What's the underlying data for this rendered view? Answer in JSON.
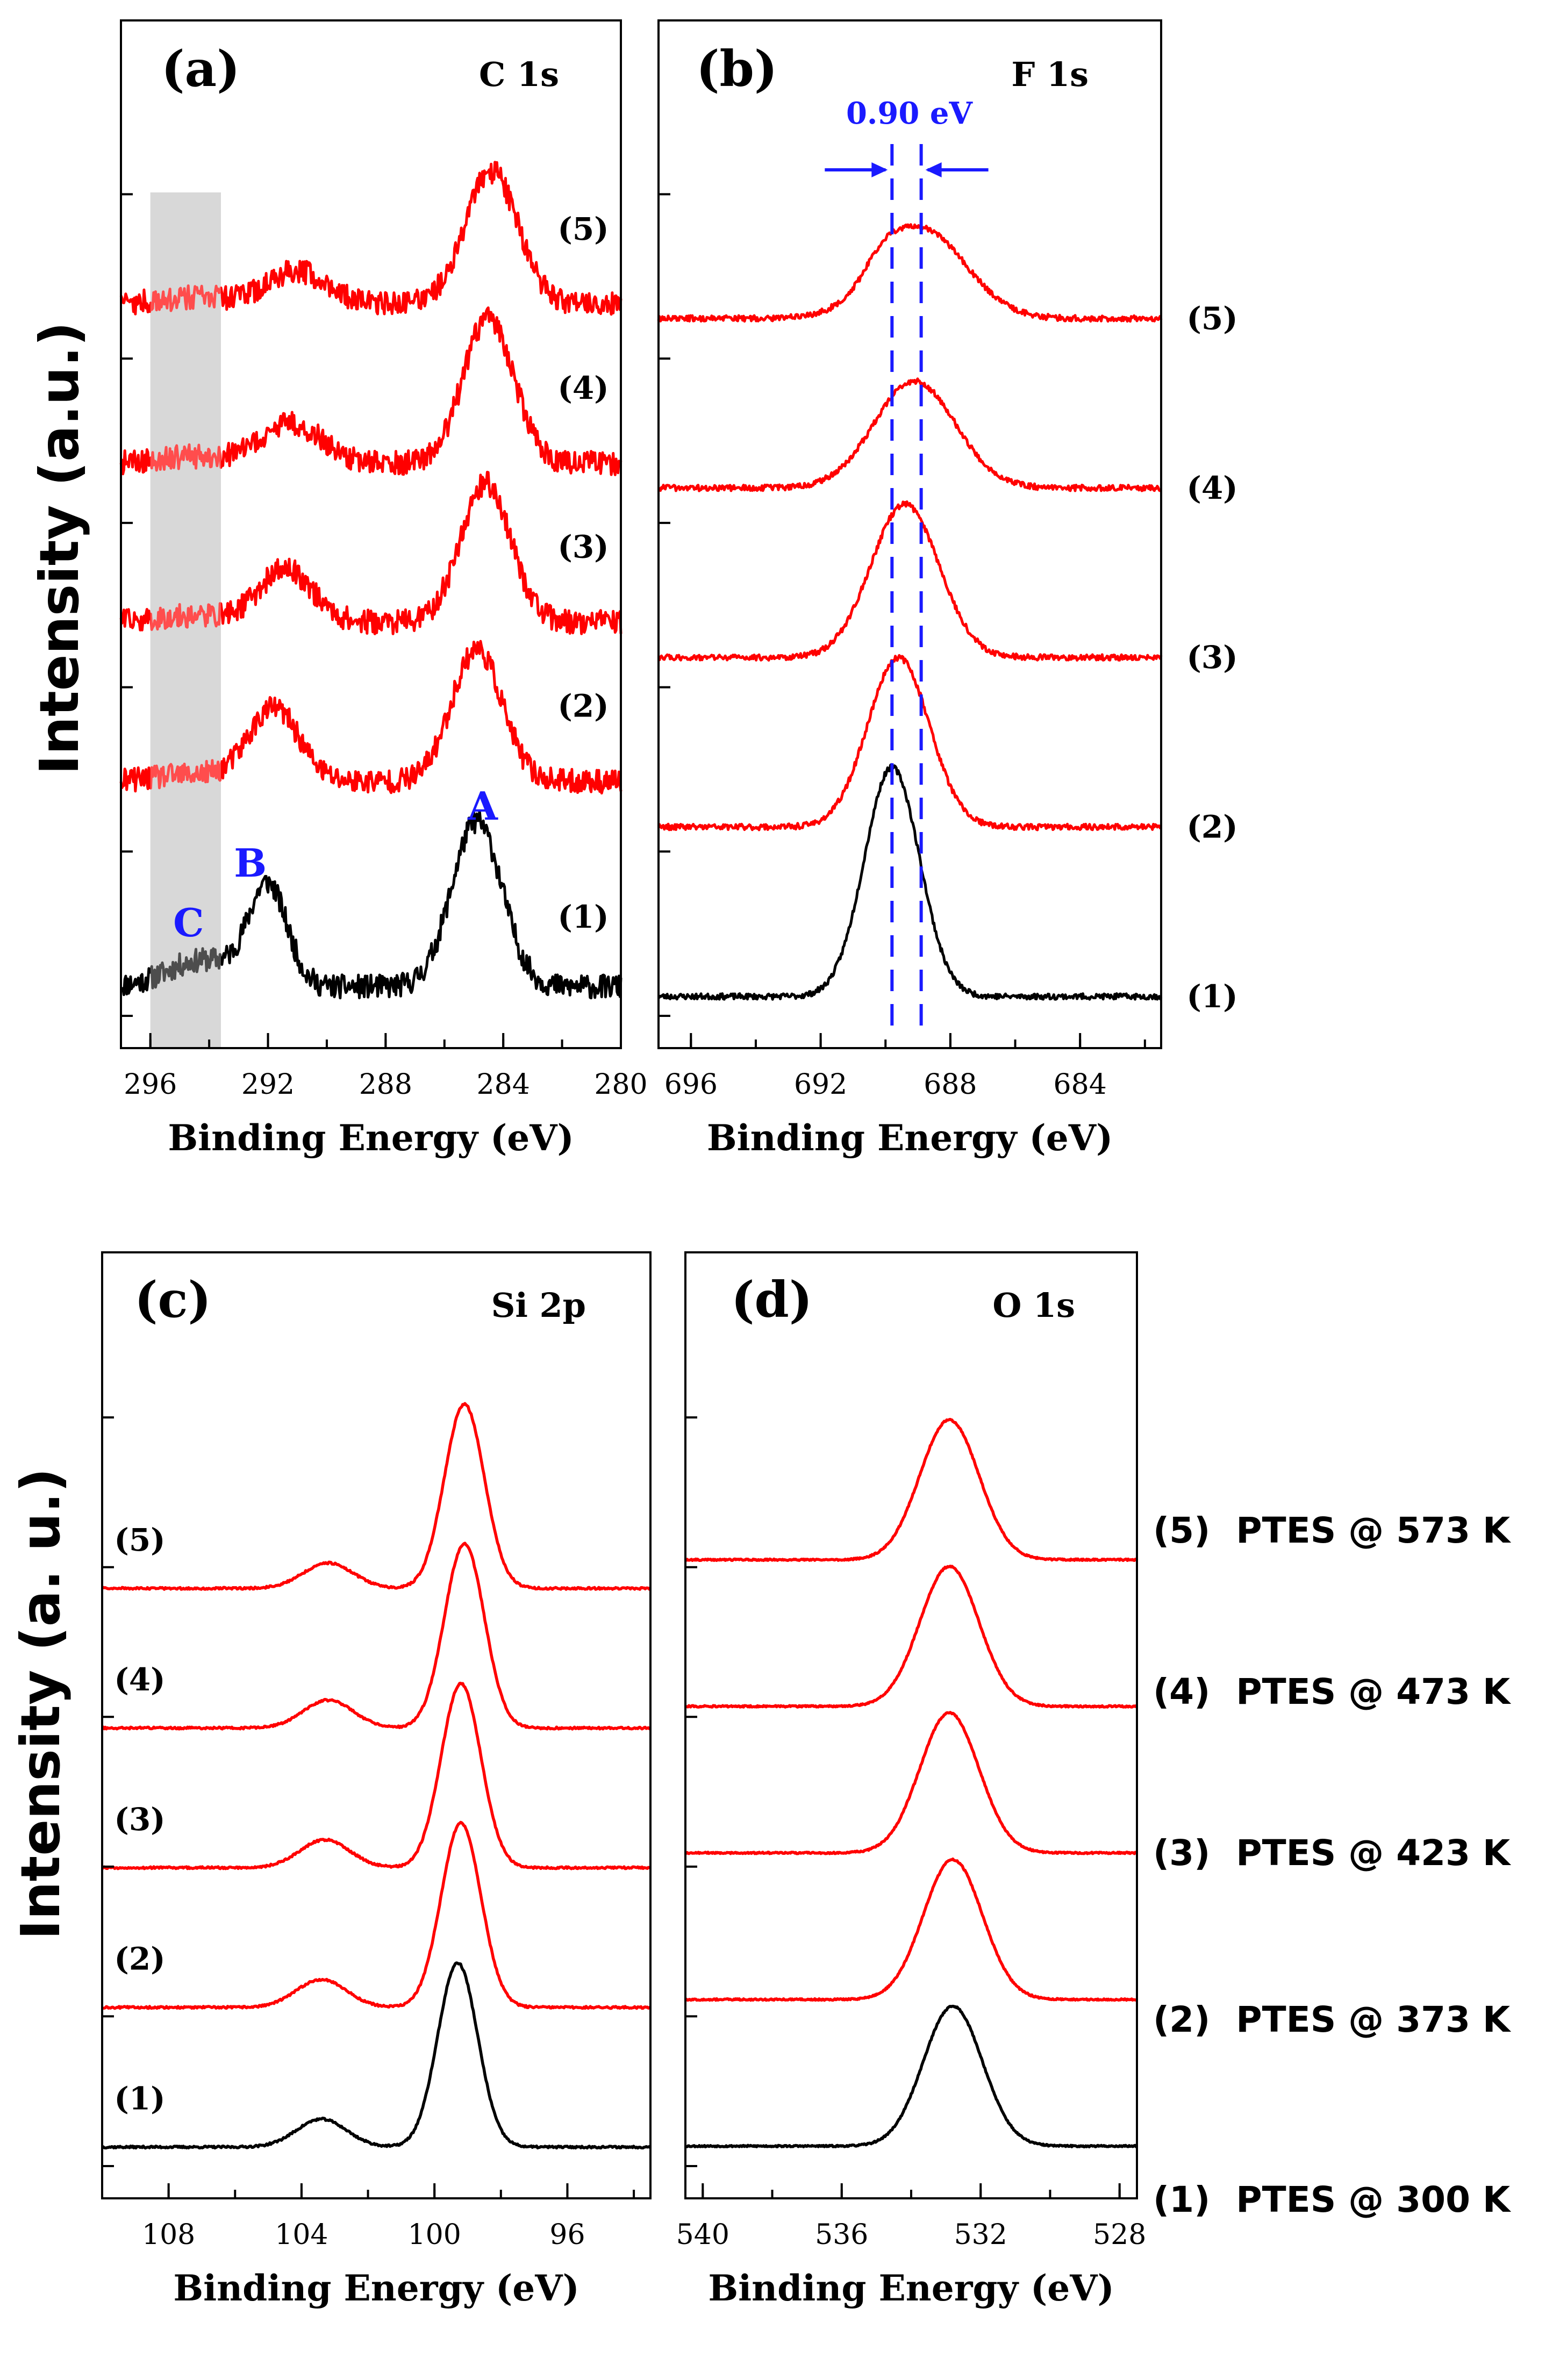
{
  "figure": {
    "colors": {
      "heated": "#ff0000",
      "pristine": "#000000",
      "annotation": "#1a1aff",
      "highlight": "#c8c8c8",
      "frame": "#000000"
    },
    "ylabel_top": "Intensity (a.u.)",
    "ylabel_bottom": "Intensity (a. u.)",
    "legend": [
      {
        "num": "(5)",
        "label": "PTES @ 573 K"
      },
      {
        "num": "(4)",
        "label": "PTES @ 473 K"
      },
      {
        "num": "(3)",
        "label": "PTES @ 423 K"
      },
      {
        "num": "(2)",
        "label": "PTES @ 373 K"
      },
      {
        "num": "(1)",
        "label": "PTES @ 300 K"
      }
    ]
  },
  "chart_data": [
    {
      "type": "line",
      "panel": "(a)",
      "title": "C 1s",
      "xlabel": "Binding Energy (eV)",
      "ylabel": "Intensity (a.u.)",
      "xlim": [
        297.0,
        280.0
      ],
      "xticks": [
        296,
        292,
        288,
        284,
        280
      ],
      "xtick_labels": [
        "296",
        "292",
        "288",
        "284",
        "280"
      ],
      "noise": 0.09,
      "spectrum_labels": [
        "(1)",
        "(2)",
        "(3)",
        "(4)",
        "(5)"
      ],
      "highlight_band": [
        296.0,
        293.6
      ],
      "peak_labels": [
        {
          "text": "A",
          "x": 284.7,
          "y": 1.38
        },
        {
          "text": "B",
          "x": 292.6,
          "y": 0.95
        },
        {
          "text": "C",
          "x": 294.7,
          "y": 0.5
        }
      ],
      "series": [
        {
          "name": "(1)",
          "color": "pristine",
          "offset": 0.0,
          "baseline": 0.12,
          "peaks": [
            {
              "center": 284.9,
              "height": 1.25,
              "width": 0.85
            },
            {
              "center": 292.0,
              "height": 0.75,
              "width": 0.65
            },
            {
              "center": 294.2,
              "height": 0.2,
              "width": 1.2
            }
          ]
        },
        {
          "name": "(2)",
          "color": "heated",
          "offset": 1.55,
          "baseline": 0.12,
          "peaks": [
            {
              "center": 284.9,
              "height": 1.0,
              "width": 0.85
            },
            {
              "center": 291.8,
              "height": 0.55,
              "width": 0.85
            },
            {
              "center": 294.5,
              "height": 0.05,
              "width": 1.2
            }
          ]
        },
        {
          "name": "(3)",
          "color": "heated",
          "offset": 2.75,
          "baseline": 0.12,
          "peaks": [
            {
              "center": 284.6,
              "height": 1.05,
              "width": 0.85
            },
            {
              "center": 291.4,
              "height": 0.4,
              "width": 0.9
            },
            {
              "center": 294.5,
              "height": 0.05,
              "width": 1.2
            }
          ]
        },
        {
          "name": "(4)",
          "color": "heated",
          "offset": 3.95,
          "baseline": 0.12,
          "peaks": [
            {
              "center": 284.5,
              "height": 1.1,
              "width": 0.85
            },
            {
              "center": 291.2,
              "height": 0.3,
              "width": 1.0
            },
            {
              "center": 294.5,
              "height": 0.05,
              "width": 1.2
            }
          ]
        },
        {
          "name": "(5)",
          "color": "heated",
          "offset": 5.15,
          "baseline": 0.12,
          "peaks": [
            {
              "center": 284.4,
              "height": 1.0,
              "width": 0.9
            },
            {
              "center": 291.0,
              "height": 0.25,
              "width": 1.0
            },
            {
              "center": 294.5,
              "height": 0.05,
              "width": 1.2
            }
          ]
        }
      ],
      "ylim": [
        -0.1,
        6.6
      ]
    },
    {
      "type": "line",
      "panel": "(b)",
      "title": "F 1s",
      "xlabel": "Binding Energy (eV)",
      "ylabel": "Intensity (a.u.)",
      "xlim": [
        697.0,
        681.5
      ],
      "xticks": [
        696,
        692,
        688,
        684
      ],
      "xtick_labels": [
        "696",
        "692",
        "688",
        "684"
      ],
      "noise": 0.018,
      "spectrum_labels": [
        "(1)",
        "(2)",
        "(3)",
        "(4)",
        "(5)"
      ],
      "shift_annotation": {
        "text": "0.90 eV",
        "from": 689.8,
        "to": 688.9
      },
      "series": [
        {
          "name": "(1)",
          "color": "pristine",
          "offset": 0.0,
          "baseline": 0.02,
          "peaks": [
            {
              "center": 689.8,
              "height": 1.42,
              "width": 0.85
            }
          ]
        },
        {
          "name": "(2)",
          "color": "heated",
          "offset": 1.05,
          "baseline": 0.02,
          "peaks": [
            {
              "center": 689.6,
              "height": 1.05,
              "width": 0.95
            }
          ]
        },
        {
          "name": "(3)",
          "color": "heated",
          "offset": 2.1,
          "baseline": 0.02,
          "peaks": [
            {
              "center": 689.4,
              "height": 0.95,
              "width": 1.05
            }
          ]
        },
        {
          "name": "(4)",
          "color": "heated",
          "offset": 3.15,
          "baseline": 0.02,
          "peaks": [
            {
              "center": 689.1,
              "height": 0.66,
              "width": 1.25
            }
          ]
        },
        {
          "name": "(5)",
          "color": "heated",
          "offset": 4.2,
          "baseline": 0.02,
          "peaks": [
            {
              "center": 688.9,
              "height": 0.56,
              "width": 1.35
            },
            {
              "center": 690.1,
              "height": 0.1,
              "width": 0.5
            }
          ]
        }
      ],
      "ylim": [
        -0.1,
        5.4
      ]
    },
    {
      "type": "line",
      "panel": "(c)",
      "title": "Si 2p",
      "xlabel": "Binding Energy (eV)",
      "ylabel": "Intensity (a. u.)",
      "xlim": [
        110.0,
        93.5
      ],
      "xticks": [
        108,
        104,
        100,
        96
      ],
      "xtick_labels": [
        "108",
        "104",
        "100",
        "96"
      ],
      "noise": 0.008,
      "spectrum_labels": [
        "(1)",
        "(2)",
        "(3)",
        "(4)",
        "(5)"
      ],
      "series": [
        {
          "name": "(1)",
          "color": "pristine",
          "offset": 0.0,
          "baseline": 0.0,
          "peaks": [
            {
              "center": 99.3,
              "height": 1.45,
              "width": 0.6
            },
            {
              "center": 103.4,
              "height": 0.22,
              "width": 0.75
            }
          ]
        },
        {
          "name": "(2)",
          "color": "heated",
          "offset": 1.1,
          "baseline": 0.0,
          "peaks": [
            {
              "center": 99.2,
              "height": 1.45,
              "width": 0.6
            },
            {
              "center": 103.4,
              "height": 0.22,
              "width": 0.75
            }
          ]
        },
        {
          "name": "(3)",
          "color": "heated",
          "offset": 2.2,
          "baseline": 0.0,
          "peaks": [
            {
              "center": 99.2,
              "height": 1.45,
              "width": 0.6
            },
            {
              "center": 103.3,
              "height": 0.22,
              "width": 0.75
            }
          ]
        },
        {
          "name": "(4)",
          "color": "heated",
          "offset": 3.3,
          "baseline": 0.0,
          "peaks": [
            {
              "center": 99.1,
              "height": 1.45,
              "width": 0.6
            },
            {
              "center": 103.2,
              "height": 0.22,
              "width": 0.75
            }
          ]
        },
        {
          "name": "(5)",
          "color": "heated",
          "offset": 4.4,
          "baseline": 0.0,
          "peaks": [
            {
              "center": 99.1,
              "height": 1.45,
              "width": 0.6
            },
            {
              "center": 103.2,
              "height": 0.2,
              "width": 0.75
            }
          ]
        }
      ],
      "ylim": [
        -0.15,
        6.2
      ]
    },
    {
      "type": "line",
      "panel": "(d)",
      "title": "O 1s",
      "xlabel": "Binding Energy (eV)",
      "ylabel": "Intensity (a. u.)",
      "xlim": [
        540.5,
        527.5
      ],
      "xticks": [
        540,
        536,
        532,
        528
      ],
      "xtick_labels": [
        "540",
        "536",
        "532",
        "528"
      ],
      "noise": 0.006,
      "spectrum_labels": [],
      "series": [
        {
          "name": "(1)",
          "color": "pristine",
          "offset": 0.0,
          "baseline": 0.0,
          "peaks": [
            {
              "center": 532.8,
              "height": 1.05,
              "width": 0.85
            }
          ]
        },
        {
          "name": "(2)",
          "color": "heated",
          "offset": 1.1,
          "baseline": 0.0,
          "peaks": [
            {
              "center": 532.8,
              "height": 1.05,
              "width": 0.85
            }
          ]
        },
        {
          "name": "(3)",
          "color": "heated",
          "offset": 2.2,
          "baseline": 0.0,
          "peaks": [
            {
              "center": 532.9,
              "height": 1.05,
              "width": 0.85
            }
          ]
        },
        {
          "name": "(4)",
          "color": "heated",
          "offset": 3.3,
          "baseline": 0.0,
          "peaks": [
            {
              "center": 532.9,
              "height": 1.05,
              "width": 0.85
            }
          ]
        },
        {
          "name": "(5)",
          "color": "heated",
          "offset": 4.4,
          "baseline": 0.0,
          "peaks": [
            {
              "center": 532.9,
              "height": 1.05,
              "width": 0.85
            }
          ]
        }
      ],
      "ylim": [
        -0.15,
        5.9
      ]
    }
  ]
}
